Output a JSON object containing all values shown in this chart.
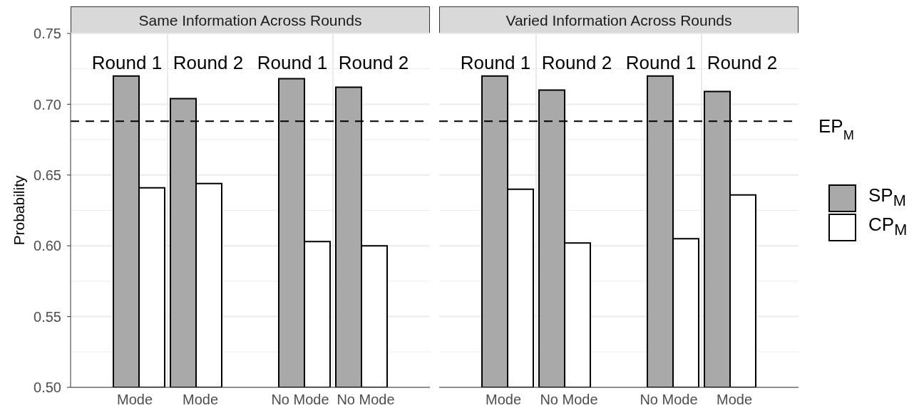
{
  "chart_data": [
    {
      "type": "bar",
      "title": "Same Information Across Rounds",
      "ylabel": "Probability",
      "categories": [
        "Mode",
        "Mode",
        "No Mode",
        "No Mode"
      ],
      "series": [
        {
          "color": "#a9a9a9",
          "values": [
            0.72,
            0.704,
            0.718,
            0.712
          ]
        },
        {
          "color": "#ffffff",
          "values": [
            0.641,
            0.644,
            0.603,
            0.6
          ]
        }
      ],
      "ylim": [
        0.5,
        0.75
      ],
      "yticks": [
        {
          "value": 0.5,
          "label": "0.50"
        },
        0.55,
        {
          "value": 0.6,
          "label": "0.60"
        },
        0.65,
        {
          "value": 0.7,
          "label": "0.70"
        },
        0.75
      ],
      "grid": true,
      "ref_lines": [
        {
          "axis": "y",
          "value": 0.688,
          "line_style": "dashed",
          "color": "#000000"
        }
      ],
      "annotations": [
        "Round 1",
        "Round 2",
        "Round 1",
        "Round 2"
      ]
    },
    {
      "type": "bar",
      "title": "Varied Information Across Rounds",
      "categories": [
        "Mode",
        "No Mode",
        "No Mode",
        "Mode"
      ],
      "series": [
        {
          "name": "SP$_{M}$",
          "color": "#a9a9a9",
          "values": [
            0.72,
            0.71,
            0.72,
            0.709
          ]
        },
        {
          "name": "CP$_{M}$",
          "color": "#ffffff",
          "values": [
            0.64,
            0.602,
            0.605,
            0.636
          ]
        }
      ],
      "ylim": [
        0.5,
        0.75
      ],
      "yticks": [
        0.5,
        0.55,
        0.6,
        0.65,
        0.7,
        0.75
      ],
      "grid": true,
      "tick_labels": "x",
      "legend": "right",
      "ref_lines": [
        {
          "axis": "y",
          "value": 0.688,
          "label": "EP$_{M}$",
          "line_style": "dashed",
          "color": "#000000"
        }
      ],
      "annotations": [
        "Round 1",
        "Round 2",
        "Round 1",
        "Round 2"
      ]
    }
  ]
}
